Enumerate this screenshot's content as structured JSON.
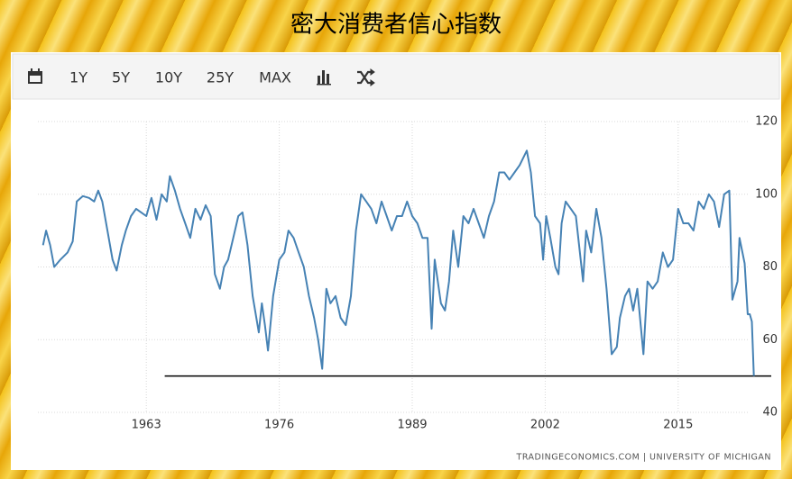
{
  "chart_data": {
    "type": "line",
    "title": "密大消费者信心指数",
    "toolbar": [
      "1Y",
      "5Y",
      "10Y",
      "25Y",
      "MAX"
    ],
    "source": "TRADINGECONOMICS.COM | UNIVERSITY OF MICHIGAN",
    "color": "#4682b4",
    "grid": true,
    "xlim": [
      1952.4,
      2024.1
    ],
    "xticks": [
      1963,
      1976,
      1989,
      2002,
      2015
    ],
    "ylim": [
      40,
      120
    ],
    "yticks": [
      40,
      60,
      80,
      100,
      120
    ],
    "reference_line": {
      "value": 50,
      "x": [
        1964.8,
        2024.1
      ],
      "color": "#000000"
    },
    "x": [
      1952.9,
      1953.2,
      1953.6,
      1954.0,
      1954.6,
      1955.3,
      1955.8,
      1956.2,
      1956.8,
      1957.4,
      1957.9,
      1958.3,
      1958.7,
      1959.2,
      1959.7,
      1960.1,
      1960.6,
      1961.0,
      1961.5,
      1962.0,
      1962.5,
      1963.0,
      1963.5,
      1964.0,
      1964.5,
      1965.0,
      1965.3,
      1965.8,
      1966.3,
      1966.8,
      1967.3,
      1967.8,
      1968.3,
      1968.8,
      1969.3,
      1969.7,
      1970.2,
      1970.6,
      1971.0,
      1971.5,
      1972.0,
      1972.4,
      1972.9,
      1973.4,
      1974.0,
      1974.3,
      1974.6,
      1974.9,
      1975.4,
      1976.0,
      1976.5,
      1976.9,
      1977.4,
      1977.9,
      1978.4,
      1978.9,
      1979.4,
      1979.8,
      1980.2,
      1980.6,
      1981.0,
      1981.5,
      1982.0,
      1982.5,
      1983.0,
      1983.5,
      1984.0,
      1984.5,
      1985.0,
      1985.5,
      1986.0,
      1986.5,
      1987.0,
      1987.5,
      1988.0,
      1988.5,
      1989.0,
      1989.5,
      1990.0,
      1990.5,
      1990.9,
      1991.2,
      1991.8,
      1992.2,
      1992.6,
      1993.0,
      1993.5,
      1994.0,
      1994.5,
      1995.0,
      1995.5,
      1996.0,
      1996.5,
      1997.0,
      1997.5,
      1998.0,
      1998.5,
      1999.0,
      1999.5,
      2000.2,
      2000.6,
      2001.0,
      2001.5,
      2001.8,
      2002.1,
      2002.5,
      2003.0,
      2003.3,
      2003.6,
      2004.0,
      2004.5,
      2005.0,
      2005.7,
      2006.0,
      2006.5,
      2007.0,
      2007.5,
      2008.0,
      2008.5,
      2009.0,
      2009.3,
      2009.8,
      2010.2,
      2010.6,
      2011.0,
      2011.6,
      2012.0,
      2012.5,
      2013.0,
      2013.5,
      2014.0,
      2014.5,
      2015.0,
      2015.5,
      2016.0,
      2016.5,
      2017.0,
      2017.5,
      2018.0,
      2018.5,
      2019.0,
      2019.5,
      2020.0,
      2020.3,
      2020.8,
      2021.0,
      2021.5,
      2021.8,
      2022.0,
      2022.2,
      2022.4
    ],
    "values": [
      86,
      90,
      86,
      80,
      82,
      84,
      87,
      98,
      99.5,
      99,
      98,
      101,
      98,
      90,
      82,
      79,
      86,
      90,
      94,
      96,
      95,
      94,
      99,
      93,
      100,
      98,
      105,
      101,
      96,
      92,
      88,
      96,
      93,
      97,
      94,
      78,
      74,
      80,
      82,
      88,
      94,
      95,
      86,
      72,
      62,
      70,
      64,
      57,
      72,
      82,
      84,
      90,
      88,
      84,
      80,
      72,
      66,
      60,
      52,
      74,
      70,
      72,
      66,
      64,
      72,
      90,
      100,
      98,
      96,
      92,
      98,
      94,
      90,
      94,
      94,
      98,
      94,
      92,
      88,
      88,
      63,
      82,
      70,
      68,
      76,
      90,
      80,
      94,
      92,
      96,
      92,
      88,
      94,
      98,
      106,
      106,
      104,
      106,
      108,
      112,
      106,
      94,
      92,
      82,
      94,
      88,
      80,
      78,
      92,
      98,
      96,
      94,
      76,
      90,
      84,
      96,
      88,
      74,
      56,
      58,
      66,
      72,
      74,
      68,
      74,
      56,
      76,
      74,
      76,
      84,
      80,
      82,
      96,
      92,
      92,
      90,
      98,
      96,
      100,
      98,
      91,
      100,
      101,
      71,
      76,
      88,
      81,
      67,
      67,
      65,
      50
    ]
  }
}
